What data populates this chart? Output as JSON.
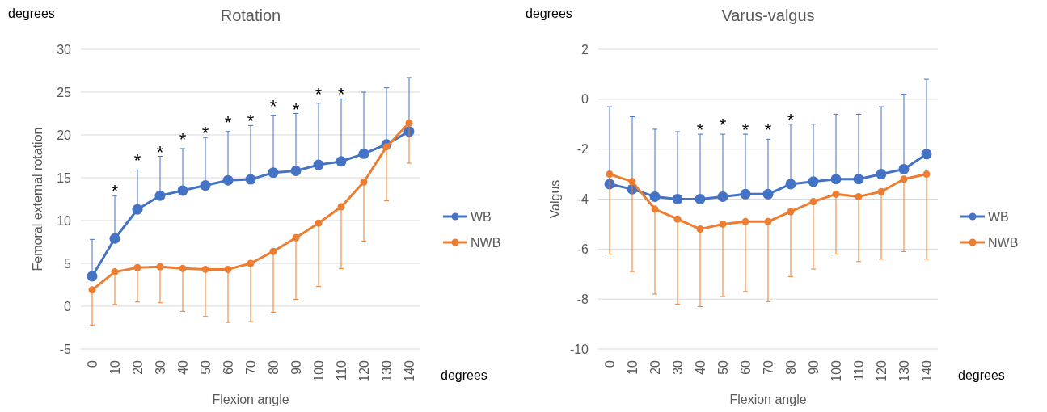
{
  "chart_data": [
    {
      "type": "line",
      "title": "Rotation",
      "xlabel": "Flexion angle",
      "ylabel": "Femoral external rotation",
      "categories": [
        "0",
        "10",
        "20",
        "30",
        "40",
        "50",
        "60",
        "70",
        "80",
        "90",
        "100",
        "110",
        "120",
        "130",
        "140"
      ],
      "series": [
        {
          "name": "WB",
          "color": "#4472c4",
          "values": [
            3.5,
            7.9,
            11.3,
            12.9,
            13.5,
            14.1,
            14.7,
            14.8,
            15.6,
            15.8,
            16.5,
            16.9,
            17.8,
            18.9,
            20.4
          ],
          "errors": [
            [
              3.5,
              7.8
            ],
            [
              7.9,
              12.9
            ],
            [
              11.3,
              15.9
            ],
            [
              12.9,
              17.5
            ],
            [
              13.5,
              18.4
            ],
            [
              14.1,
              19.7
            ],
            [
              14.7,
              20.4
            ],
            [
              14.8,
              21.1
            ],
            [
              15.6,
              22.3
            ],
            [
              15.8,
              22.5
            ],
            [
              16.5,
              23.7
            ],
            [
              16.9,
              24.2
            ],
            [
              17.8,
              25.0
            ],
            [
              18.9,
              25.5
            ],
            [
              20.4,
              26.7
            ]
          ]
        },
        {
          "name": "NWB",
          "color": "#ed7d31",
          "values": [
            1.9,
            4.0,
            4.5,
            4.6,
            4.4,
            4.3,
            4.3,
            5.0,
            6.4,
            8.0,
            9.7,
            11.6,
            14.5,
            18.6,
            21.4
          ],
          "errors": [
            [
              -2.2,
              1.9
            ],
            [
              0.2,
              4.0
            ],
            [
              0.5,
              4.5
            ],
            [
              0.4,
              4.6
            ],
            [
              -0.6,
              4.4
            ],
            [
              -1.2,
              4.3
            ],
            [
              -1.9,
              4.3
            ],
            [
              -1.8,
              5.0
            ],
            [
              -0.7,
              6.4
            ],
            [
              0.8,
              8.0
            ],
            [
              2.3,
              9.7
            ],
            [
              4.4,
              11.6
            ],
            [
              7.6,
              14.5
            ],
            [
              12.3,
              18.6
            ],
            [
              16.7,
              21.4
            ]
          ]
        }
      ],
      "ylim": [
        -5,
        30
      ],
      "yticks": [
        -5,
        0,
        5,
        10,
        15,
        20,
        25,
        30
      ],
      "grid": "y",
      "legend": "right",
      "marker": "circle",
      "annotations": [
        "degrees",
        "degrees",
        "*",
        "*",
        "*",
        "*",
        "*",
        "*",
        "*",
        "*",
        "*",
        "*",
        "*"
      ]
    },
    {
      "type": "line",
      "title": "Varus-valgus",
      "xlabel": "Flexion angle",
      "ylabel": "Valgus",
      "categories": [
        "0",
        "10",
        "20",
        "30",
        "40",
        "50",
        "60",
        "70",
        "80",
        "90",
        "100",
        "110",
        "120",
        "130",
        "140"
      ],
      "series": [
        {
          "name": "WB",
          "color": "#4472c4",
          "values": [
            -3.4,
            -3.6,
            -3.9,
            -4.0,
            -4.0,
            -3.9,
            -3.8,
            -3.8,
            -3.4,
            -3.3,
            -3.2,
            -3.2,
            -3.0,
            -2.8,
            -2.2
          ],
          "errors": [
            [
              -3.4,
              -0.3
            ],
            [
              -3.6,
              -0.7
            ],
            [
              -3.9,
              -1.2
            ],
            [
              -4.0,
              -1.3
            ],
            [
              -4.0,
              -1.4
            ],
            [
              -3.9,
              -1.4
            ],
            [
              -3.8,
              -1.4
            ],
            [
              -3.8,
              -1.6
            ],
            [
              -3.4,
              -1.0
            ],
            [
              -3.3,
              -1.0
            ],
            [
              -3.2,
              -0.6
            ],
            [
              -3.2,
              -0.6
            ],
            [
              -3.0,
              -0.3
            ],
            [
              -2.8,
              0.2
            ],
            [
              -2.2,
              0.8
            ]
          ]
        },
        {
          "name": "NWB",
          "color": "#ed7d31",
          "values": [
            -3.0,
            -3.3,
            -4.4,
            -4.8,
            -5.2,
            -5.0,
            -4.9,
            -4.9,
            -4.5,
            -4.1,
            -3.8,
            -3.9,
            -3.7,
            -3.2,
            -3.0
          ],
          "errors": [
            [
              -6.2,
              -3.0
            ],
            [
              -6.9,
              -3.3
            ],
            [
              -7.8,
              -4.4
            ],
            [
              -8.2,
              -4.8
            ],
            [
              -8.3,
              -5.2
            ],
            [
              -7.9,
              -5.0
            ],
            [
              -7.7,
              -4.9
            ],
            [
              -8.1,
              -4.9
            ],
            [
              -7.1,
              -4.5
            ],
            [
              -6.8,
              -4.1
            ],
            [
              -6.2,
              -3.8
            ],
            [
              -6.5,
              -3.9
            ],
            [
              -6.4,
              -3.7
            ],
            [
              -6.1,
              -3.2
            ],
            [
              -6.4,
              -3.0
            ]
          ]
        }
      ],
      "ylim": [
        -10,
        2
      ],
      "yticks": [
        -10,
        -8,
        -6,
        -4,
        -2,
        0,
        2
      ],
      "grid": "y",
      "legend": "right",
      "marker": "circle",
      "annotations": [
        "degrees",
        "degrees",
        "*",
        "*",
        "*",
        "*",
        "*"
      ]
    }
  ]
}
